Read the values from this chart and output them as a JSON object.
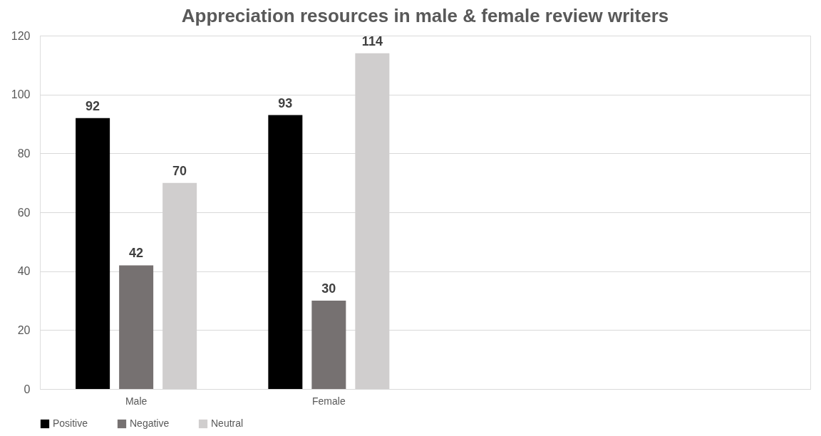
{
  "chart_data": {
    "type": "bar",
    "title": "Appreciation resources in male & female review writers",
    "categories": [
      "Male",
      "Female",
      null,
      null
    ],
    "series": [
      {
        "name": "Positive",
        "color": "#000000",
        "values": [
          92,
          93,
          null,
          null
        ]
      },
      {
        "name": "Negative",
        "color": "#767171",
        "values": [
          42,
          30,
          null,
          null
        ]
      },
      {
        "name": "Neutral",
        "color": "#d0cece",
        "values": [
          70,
          114,
          null,
          null
        ]
      }
    ],
    "ylim": [
      0,
      120
    ],
    "yticks": [
      0,
      20,
      40,
      60,
      80,
      100,
      120
    ],
    "grid": "y",
    "legend": "bottom",
    "data_labels": true
  }
}
